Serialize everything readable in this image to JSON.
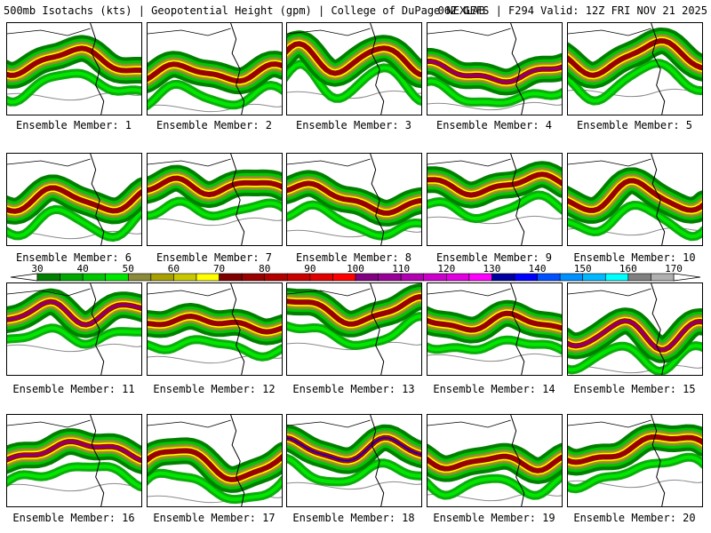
{
  "header": {
    "left": "500mb Isotachs (kts) | Geopotential Height (gpm) | College of DuPage NEXLAB",
    "right": "06Z GEFS | F294 Valid: 12Z FRI NOV 21 2025"
  },
  "members": [
    {
      "label": "Ensemble Member: 1",
      "core": 80
    },
    {
      "label": "Ensemble Member: 2",
      "core": 70
    },
    {
      "label": "Ensemble Member: 3",
      "core": 80
    },
    {
      "label": "Ensemble Member: 4",
      "core": 100
    },
    {
      "label": "Ensemble Member: 5",
      "core": 80
    },
    {
      "label": "Ensemble Member: 6",
      "core": 80
    },
    {
      "label": "Ensemble Member: 7",
      "core": 80
    },
    {
      "label": "Ensemble Member: 8",
      "core": 80
    },
    {
      "label": "Ensemble Member: 9",
      "core": 80
    },
    {
      "label": "Ensemble Member: 10",
      "core": 80
    },
    {
      "label": "Ensemble Member: 11",
      "core": 100
    },
    {
      "label": "Ensemble Member: 12",
      "core": 80
    },
    {
      "label": "Ensemble Member: 13",
      "core": 80
    },
    {
      "label": "Ensemble Member: 14",
      "core": 80
    },
    {
      "label": "Ensemble Member: 15",
      "core": 100
    },
    {
      "label": "Ensemble Member: 16",
      "core": 100
    },
    {
      "label": "Ensemble Member: 17",
      "core": 80
    },
    {
      "label": "Ensemble Member: 18",
      "core": 130
    },
    {
      "label": "Ensemble Member: 19",
      "core": 80
    },
    {
      "label": "Ensemble Member: 20",
      "core": 80
    }
  ],
  "chart_data": {
    "type": "heatmap",
    "title": "500mb Isotachs (kts) | Geopotential Height (gpm)",
    "model": "06Z GEFS",
    "forecast_hour": "F294",
    "valid": "12Z FRI NOV 21 2025",
    "source": "College of DuPage NEXLAB",
    "colorbar": {
      "unit": "kts",
      "min": 30,
      "max": 170,
      "ticks": [
        30,
        40,
        50,
        60,
        70,
        80,
        90,
        100,
        110,
        120,
        130,
        140,
        150,
        160,
        170
      ],
      "bins": [
        {
          "from": 30,
          "to": 35,
          "color": "#007f00"
        },
        {
          "from": 35,
          "to": 40,
          "color": "#00a800"
        },
        {
          "from": 40,
          "to": 45,
          "color": "#00c800"
        },
        {
          "from": 45,
          "to": 50,
          "color": "#00e800"
        },
        {
          "from": 50,
          "to": 55,
          "color": "#8a8a3a"
        },
        {
          "from": 55,
          "to": 60,
          "color": "#a8a000"
        },
        {
          "from": 60,
          "to": 65,
          "color": "#c8c800"
        },
        {
          "from": 65,
          "to": 70,
          "color": "#ffff00"
        },
        {
          "from": 70,
          "to": 75,
          "color": "#7f0000"
        },
        {
          "from": 75,
          "to": 80,
          "color": "#990000"
        },
        {
          "from": 80,
          "to": 85,
          "color": "#b00000"
        },
        {
          "from": 85,
          "to": 90,
          "color": "#c80000"
        },
        {
          "from": 90,
          "to": 95,
          "color": "#e00000"
        },
        {
          "from": 95,
          "to": 100,
          "color": "#ff0000"
        },
        {
          "from": 100,
          "to": 105,
          "color": "#800080"
        },
        {
          "from": 105,
          "to": 110,
          "color": "#990099"
        },
        {
          "from": 110,
          "to": 115,
          "color": "#b000b0"
        },
        {
          "from": 115,
          "to": 120,
          "color": "#cc00cc"
        },
        {
          "from": 120,
          "to": 125,
          "color": "#e000e0"
        },
        {
          "from": 125,
          "to": 130,
          "color": "#ff00ff"
        },
        {
          "from": 130,
          "to": 135,
          "color": "#0000a0"
        },
        {
          "from": 135,
          "to": 140,
          "color": "#0000ff"
        },
        {
          "from": 140,
          "to": 145,
          "color": "#0050ff"
        },
        {
          "from": 145,
          "to": 150,
          "color": "#0090ff"
        },
        {
          "from": 150,
          "to": 155,
          "color": "#00b8ff"
        },
        {
          "from": 155,
          "to": 160,
          "color": "#00ffff"
        },
        {
          "from": 160,
          "to": 165,
          "color": "#808080"
        },
        {
          "from": 165,
          "to": 170,
          "color": "#b0b0b0"
        }
      ]
    }
  }
}
